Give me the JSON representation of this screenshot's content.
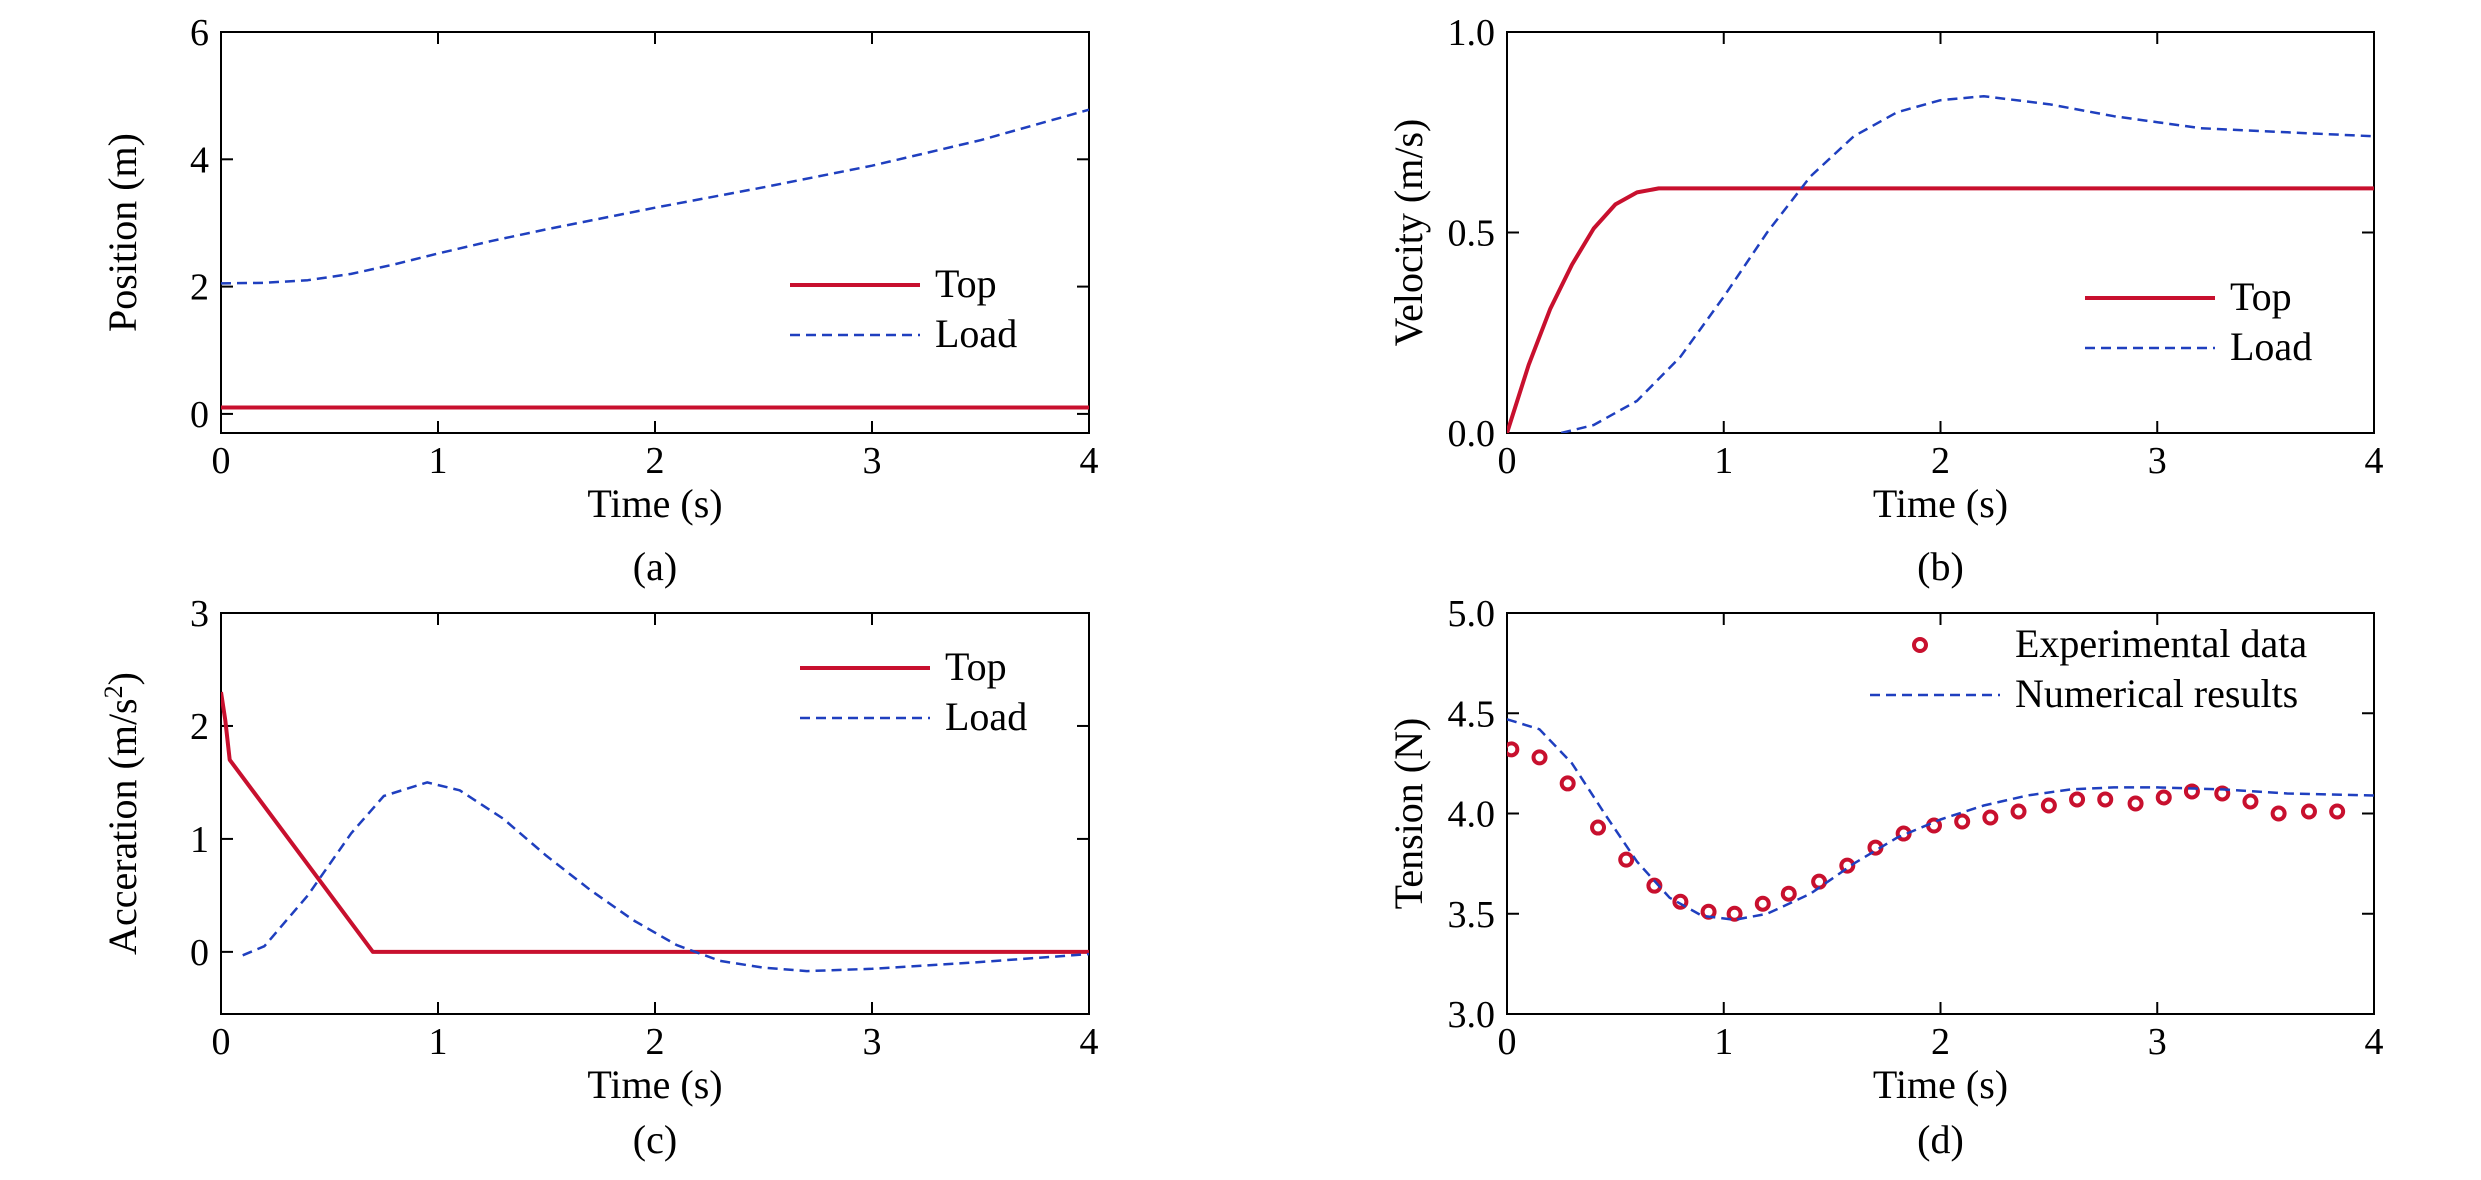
{
  "colors": {
    "top": "#c8102e",
    "load": "#1f3fbf",
    "axis": "#000000"
  },
  "chart_data": [
    {
      "type": "line",
      "caption": "(a)",
      "xlabel": "Time (s)",
      "ylabel": "Position (m)",
      "xlim": [
        0,
        4
      ],
      "ylim": [
        -0.3,
        6
      ],
      "xticks": [
        0,
        1,
        2,
        3,
        4
      ],
      "yticks": [
        0,
        2,
        4,
        6
      ],
      "xtick_labels": [
        "0",
        "1",
        "2",
        "3",
        "4"
      ],
      "ytick_labels": [
        "0",
        "2",
        "4",
        "6"
      ],
      "legend_position": "center-right",
      "series": [
        {
          "name": "Top",
          "style": "solid",
          "color": "top",
          "points": [
            [
              0,
              0.1
            ],
            [
              4,
              0.1
            ]
          ]
        },
        {
          "name": "Load",
          "style": "dashed",
          "color": "load",
          "points": [
            [
              0,
              2.05
            ],
            [
              0.2,
              2.06
            ],
            [
              0.4,
              2.1
            ],
            [
              0.6,
              2.2
            ],
            [
              0.8,
              2.35
            ],
            [
              1.0,
              2.52
            ],
            [
              1.25,
              2.72
            ],
            [
              1.5,
              2.9
            ],
            [
              1.75,
              3.07
            ],
            [
              2.0,
              3.24
            ],
            [
              2.5,
              3.56
            ],
            [
              3.0,
              3.9
            ],
            [
              3.5,
              4.3
            ],
            [
              4.0,
              4.78
            ]
          ]
        }
      ]
    },
    {
      "type": "line",
      "caption": "(b)",
      "xlabel": "Time (s)",
      "ylabel": "Velocity (m/s)",
      "xlim": [
        0,
        4
      ],
      "ylim": [
        0,
        1.0
      ],
      "xticks": [
        0,
        1,
        2,
        3,
        4
      ],
      "yticks": [
        0,
        0.5,
        1.0
      ],
      "xtick_labels": [
        "0",
        "1",
        "2",
        "3",
        "4"
      ],
      "ytick_labels": [
        "0.0",
        "0.5",
        "1.0"
      ],
      "legend_position": "lower-right",
      "series": [
        {
          "name": "Top",
          "style": "solid",
          "color": "top",
          "points": [
            [
              0,
              0
            ],
            [
              0.1,
              0.17
            ],
            [
              0.2,
              0.31
            ],
            [
              0.3,
              0.42
            ],
            [
              0.4,
              0.51
            ],
            [
              0.5,
              0.57
            ],
            [
              0.6,
              0.6
            ],
            [
              0.7,
              0.61
            ],
            [
              1.0,
              0.61
            ],
            [
              2.0,
              0.61
            ],
            [
              3.0,
              0.61
            ],
            [
              4.0,
              0.61
            ]
          ]
        },
        {
          "name": "Load",
          "style": "dashed",
          "color": "load",
          "points": [
            [
              0.25,
              0
            ],
            [
              0.4,
              0.02
            ],
            [
              0.6,
              0.08
            ],
            [
              0.8,
              0.19
            ],
            [
              1.0,
              0.34
            ],
            [
              1.2,
              0.5
            ],
            [
              1.4,
              0.64
            ],
            [
              1.6,
              0.74
            ],
            [
              1.8,
              0.8
            ],
            [
              2.0,
              0.83
            ],
            [
              2.2,
              0.84
            ],
            [
              2.5,
              0.82
            ],
            [
              2.8,
              0.79
            ],
            [
              3.2,
              0.76
            ],
            [
              3.6,
              0.75
            ],
            [
              4.0,
              0.74
            ]
          ]
        }
      ]
    },
    {
      "type": "line",
      "caption": "(c)",
      "xlabel": "Time (s)",
      "ylabel": "Acceration (m/s",
      "ylabel_sup": "2",
      "ylabel_tail": ")",
      "xlim": [
        0,
        4
      ],
      "ylim": [
        -0.55,
        3
      ],
      "xticks": [
        0,
        1,
        2,
        3,
        4
      ],
      "yticks": [
        0,
        1,
        2,
        3
      ],
      "xtick_labels": [
        "0",
        "1",
        "2",
        "3",
        "4"
      ],
      "ytick_labels": [
        "0",
        "1",
        "2",
        "3"
      ],
      "legend_position": "top-right",
      "series": [
        {
          "name": "Top",
          "style": "solid",
          "color": "top",
          "points": [
            [
              0,
              2.3
            ],
            [
              0.02,
              2.05
            ],
            [
              0.04,
              1.7
            ],
            [
              0.7,
              0
            ],
            [
              4.0,
              0
            ]
          ]
        },
        {
          "name": "Load",
          "style": "dashed",
          "color": "load",
          "points": [
            [
              0.1,
              -0.03
            ],
            [
              0.2,
              0.05
            ],
            [
              0.4,
              0.5
            ],
            [
              0.6,
              1.05
            ],
            [
              0.75,
              1.38
            ],
            [
              0.95,
              1.5
            ],
            [
              1.1,
              1.43
            ],
            [
              1.3,
              1.18
            ],
            [
              1.5,
              0.85
            ],
            [
              1.7,
              0.55
            ],
            [
              1.9,
              0.28
            ],
            [
              2.1,
              0.06
            ],
            [
              2.3,
              -0.08
            ],
            [
              2.5,
              -0.14
            ],
            [
              2.7,
              -0.17
            ],
            [
              3.0,
              -0.15
            ],
            [
              3.5,
              -0.09
            ],
            [
              4.0,
              -0.02
            ]
          ]
        }
      ]
    },
    {
      "type": "scatter",
      "caption": "(d)",
      "xlabel": "Time (s)",
      "ylabel": "Tension (N)",
      "xlim": [
        0,
        4
      ],
      "ylim": [
        3.0,
        5.0
      ],
      "xticks": [
        0,
        1,
        2,
        3,
        4
      ],
      "yticks": [
        3.0,
        3.5,
        4.0,
        4.5,
        5.0
      ],
      "xtick_labels": [
        "0",
        "1",
        "2",
        "3",
        "4"
      ],
      "ytick_labels": [
        "3.0",
        "3.5",
        "4.0",
        "4.5",
        "5.0"
      ],
      "legend_position": "top-right",
      "series": [
        {
          "name": "Experimental data",
          "style": "markers",
          "color": "top",
          "points": [
            [
              0.02,
              4.32
            ],
            [
              0.15,
              4.28
            ],
            [
              0.28,
              4.15
            ],
            [
              0.42,
              3.93
            ],
            [
              0.55,
              3.77
            ],
            [
              0.68,
              3.64
            ],
            [
              0.8,
              3.56
            ],
            [
              0.93,
              3.51
            ],
            [
              1.05,
              3.5
            ],
            [
              1.18,
              3.55
            ],
            [
              1.3,
              3.6
            ],
            [
              1.44,
              3.66
            ],
            [
              1.57,
              3.74
            ],
            [
              1.7,
              3.83
            ],
            [
              1.83,
              3.9
            ],
            [
              1.97,
              3.94
            ],
            [
              2.1,
              3.96
            ],
            [
              2.23,
              3.98
            ],
            [
              2.36,
              4.01
            ],
            [
              2.5,
              4.04
            ],
            [
              2.63,
              4.07
            ],
            [
              2.76,
              4.07
            ],
            [
              2.9,
              4.05
            ],
            [
              3.03,
              4.08
            ],
            [
              3.16,
              4.11
            ],
            [
              3.3,
              4.1
            ],
            [
              3.43,
              4.06
            ],
            [
              3.56,
              4.0
            ],
            [
              3.7,
              4.01
            ],
            [
              3.83,
              4.01
            ]
          ]
        },
        {
          "name": "Numerical results",
          "style": "dashed",
          "color": "load",
          "points": [
            [
              0,
              4.47
            ],
            [
              0.15,
              4.42
            ],
            [
              0.3,
              4.25
            ],
            [
              0.45,
              4.0
            ],
            [
              0.6,
              3.76
            ],
            [
              0.75,
              3.58
            ],
            [
              0.9,
              3.49
            ],
            [
              1.05,
              3.47
            ],
            [
              1.2,
              3.5
            ],
            [
              1.4,
              3.6
            ],
            [
              1.6,
              3.75
            ],
            [
              1.8,
              3.88
            ],
            [
              2.0,
              3.97
            ],
            [
              2.2,
              4.04
            ],
            [
              2.4,
              4.09
            ],
            [
              2.6,
              4.12
            ],
            [
              2.8,
              4.13
            ],
            [
              3.0,
              4.13
            ],
            [
              3.3,
              4.12
            ],
            [
              3.6,
              4.1
            ],
            [
              4.0,
              4.09
            ]
          ]
        }
      ]
    }
  ]
}
